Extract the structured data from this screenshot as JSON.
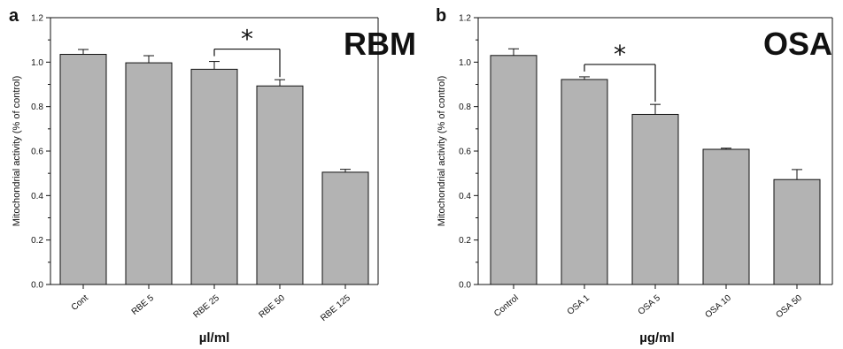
{
  "chart_data": [
    {
      "panel": "a",
      "type": "bar",
      "title": "RBM",
      "xlabel": "µl/ml",
      "ylabel": "Mitochondrial activity (% of control)",
      "ylim": [
        0,
        1.2
      ],
      "yticks": [
        "0.0",
        "0.2",
        "0.4",
        "0.6",
        "0.8",
        "1.0",
        "1.2"
      ],
      "categories": [
        "Cont",
        "RBE 5",
        "RBE 25",
        "RBE 50",
        "RBE 125"
      ],
      "values": [
        1.035,
        0.997,
        0.968,
        0.893,
        0.505
      ],
      "errors": [
        0.022,
        0.032,
        0.035,
        0.028,
        0.013
      ],
      "bar_color": "#b3b3b3",
      "significance": {
        "from": 2,
        "to": 3,
        "label": "*"
      }
    },
    {
      "panel": "b",
      "type": "bar",
      "title": "OSA",
      "xlabel": "µg/ml",
      "ylabel": "Mitochondrial activity (% of control)",
      "ylim": [
        0,
        1.2
      ],
      "yticks": [
        "0.0",
        "0.2",
        "0.4",
        "0.6",
        "0.8",
        "1.0",
        "1.2"
      ],
      "categories": [
        "Control",
        "OSA 1",
        "OSA 5",
        "OSA 10",
        "OSA 50"
      ],
      "values": [
        1.03,
        0.922,
        0.765,
        0.608,
        0.472
      ],
      "errors": [
        0.03,
        0.012,
        0.045,
        0.005,
        0.045
      ],
      "bar_color": "#b3b3b3",
      "significance": {
        "from": 1,
        "to": 2,
        "label": "*"
      }
    }
  ]
}
